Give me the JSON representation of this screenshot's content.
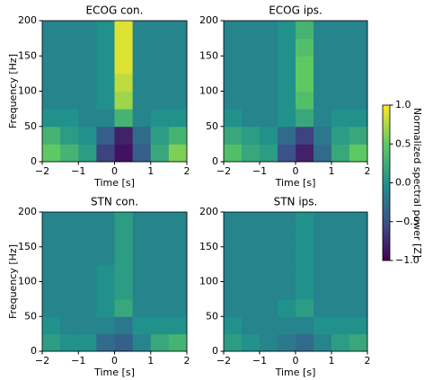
{
  "chart_data": [
    {
      "type": "heatmap",
      "title": "ECOG con.",
      "xlabel": "Time [s]",
      "ylabel": "Frequency [Hz]",
      "colormap": "viridis",
      "x": [
        -2,
        -1.5,
        -1,
        -0.5,
        0,
        0.5,
        1,
        1.5,
        2
      ],
      "y": [
        0,
        25,
        50,
        75,
        100,
        125,
        150,
        175,
        200
      ],
      "xlim": [
        -2,
        2
      ],
      "ylim": [
        0,
        200
      ],
      "xticks": [
        {
          "value": -2,
          "label": "−2"
        },
        {
          "value": -1,
          "label": "−1"
        },
        0,
        1,
        2
      ],
      "yticks": [
        0,
        50,
        100,
        150,
        200
      ],
      "values": [
        [
          0.5,
          0.3,
          0.1,
          -0.6,
          -0.9,
          -0.4,
          0.2,
          0.6
        ],
        [
          0.3,
          0.1,
          0,
          -0.4,
          -0.8,
          -0.3,
          0.1,
          0.3
        ],
        [
          0,
          0,
          -0.1,
          -0.1,
          0.3,
          -0.1,
          0,
          0
        ],
        [
          -0.1,
          -0.1,
          -0.1,
          0,
          0.7,
          -0.1,
          -0.1,
          -0.1
        ],
        [
          -0.1,
          -0.1,
          -0.1,
          0,
          0.8,
          -0.1,
          -0.1,
          -0.1
        ],
        [
          -0.1,
          -0.1,
          -0.1,
          0,
          0.9,
          -0.1,
          -0.1,
          -0.1
        ],
        [
          -0.1,
          -0.1,
          -0.1,
          0,
          0.9,
          -0.1,
          -0.1,
          -0.1
        ],
        [
          -0.1,
          -0.1,
          -0.1,
          0,
          0.9,
          -0.1,
          -0.1,
          -0.1
        ]
      ]
    },
    {
      "type": "heatmap",
      "title": "ECOG ips.",
      "xlabel": "Time [s]",
      "colormap": "viridis",
      "x": [
        -2,
        -1.5,
        -1,
        -0.5,
        0,
        0.5,
        1,
        1.5,
        2
      ],
      "y": [
        0,
        25,
        50,
        75,
        100,
        125,
        150,
        175,
        200
      ],
      "xlim": [
        -2,
        2
      ],
      "ylim": [
        0,
        200
      ],
      "xticks": [
        {
          "value": -2,
          "label": "−2"
        },
        {
          "value": -1,
          "label": "−1"
        },
        0,
        1,
        2
      ],
      "yticks": [
        0,
        50,
        100,
        150,
        200
      ],
      "values": [
        [
          0.4,
          0.2,
          0.1,
          -0.5,
          -0.8,
          -0.3,
          0.2,
          0.5
        ],
        [
          0.2,
          0.1,
          0,
          -0.3,
          -0.6,
          -0.2,
          0.1,
          0.2
        ],
        [
          0,
          -0.1,
          -0.1,
          0,
          0.2,
          -0.1,
          0,
          0
        ],
        [
          -0.1,
          -0.1,
          -0.1,
          0,
          0.4,
          -0.1,
          -0.1,
          -0.1
        ],
        [
          -0.1,
          -0.1,
          -0.1,
          0,
          0.5,
          -0.1,
          -0.1,
          -0.1
        ],
        [
          -0.1,
          -0.1,
          -0.1,
          0,
          0.5,
          -0.1,
          -0.1,
          -0.1
        ],
        [
          -0.1,
          -0.1,
          -0.1,
          0,
          0.4,
          -0.1,
          -0.1,
          -0.1
        ],
        [
          -0.1,
          -0.1,
          -0.1,
          0,
          0.3,
          -0.1,
          -0.1,
          -0.1
        ]
      ]
    },
    {
      "type": "heatmap",
      "title": "STN con.",
      "xlabel": "Time [s]",
      "ylabel": "Frequency [Hz]",
      "colormap": "viridis",
      "x": [
        -2,
        -1.5,
        -1,
        -0.5,
        0,
        0.5,
        1,
        1.5,
        2
      ],
      "y": [
        0,
        25,
        50,
        75,
        100,
        125,
        150,
        175,
        200
      ],
      "xlim": [
        -2,
        2
      ],
      "ylim": [
        0,
        200
      ],
      "xticks": [
        {
          "value": -2,
          "label": "−2"
        },
        {
          "value": -1,
          "label": "−1"
        },
        0,
        1,
        2
      ],
      "yticks": [
        0,
        50,
        100,
        150,
        200
      ],
      "values": [
        [
          0.1,
          0,
          0,
          -0.3,
          -0.4,
          -0.1,
          0.2,
          0.3
        ],
        [
          0,
          -0.1,
          -0.1,
          -0.1,
          -0.2,
          0,
          0,
          0
        ],
        [
          -0.1,
          -0.1,
          -0.1,
          0,
          0.2,
          -0.1,
          -0.1,
          -0.1
        ],
        [
          -0.1,
          -0.1,
          -0.1,
          0,
          0.1,
          -0.1,
          -0.1,
          -0.1
        ],
        [
          -0.1,
          -0.1,
          -0.1,
          0,
          0.1,
          -0.1,
          -0.1,
          -0.1
        ],
        [
          -0.1,
          -0.1,
          -0.1,
          -0.1,
          0.1,
          -0.1,
          -0.1,
          -0.1
        ],
        [
          -0.1,
          -0.1,
          -0.1,
          -0.1,
          0.1,
          -0.1,
          -0.1,
          -0.1
        ],
        [
          -0.1,
          -0.1,
          -0.1,
          -0.1,
          0.1,
          -0.1,
          -0.1,
          -0.1
        ]
      ]
    },
    {
      "type": "heatmap",
      "title": "STN ips.",
      "xlabel": "Time [s]",
      "colormap": "viridis",
      "x": [
        -2,
        -1.5,
        -1,
        -0.5,
        0,
        0.5,
        1,
        1.5,
        2
      ],
      "y": [
        0,
        25,
        50,
        75,
        100,
        125,
        150,
        175,
        200
      ],
      "xlim": [
        -2,
        2
      ],
      "ylim": [
        0,
        200
      ],
      "xticks": [
        {
          "value": -2,
          "label": "−2"
        },
        {
          "value": -1,
          "label": "−1"
        },
        0,
        1,
        2
      ],
      "yticks": [
        0,
        50,
        100,
        150,
        200
      ],
      "values": [
        [
          0.1,
          0,
          -0.1,
          -0.2,
          -0.3,
          -0.1,
          0.1,
          0.2
        ],
        [
          0,
          -0.1,
          -0.1,
          -0.1,
          -0.1,
          0,
          0,
          0
        ],
        [
          -0.1,
          -0.1,
          -0.1,
          0,
          0.1,
          -0.1,
          -0.1,
          -0.1
        ],
        [
          -0.1,
          -0.1,
          -0.1,
          -0.1,
          0,
          -0.1,
          -0.1,
          -0.1
        ],
        [
          -0.1,
          -0.1,
          -0.1,
          -0.1,
          0,
          -0.1,
          -0.1,
          -0.1
        ],
        [
          -0.1,
          -0.1,
          -0.1,
          -0.1,
          0,
          -0.1,
          -0.1,
          -0.1
        ],
        [
          -0.1,
          -0.1,
          -0.1,
          -0.1,
          0,
          -0.1,
          -0.1,
          -0.1
        ],
        [
          -0.1,
          -0.1,
          -0.1,
          -0.1,
          0,
          -0.1,
          -0.1,
          -0.1
        ]
      ]
    },
    {
      "type": "colorbar",
      "label": "Normalized spectral power [Z]",
      "colormap": "viridis",
      "zlim": [
        -1,
        1
      ],
      "zticks": [
        {
          "value": -1,
          "label": "−1.0"
        },
        {
          "value": -0.5,
          "label": "−0.5"
        },
        {
          "value": 0,
          "label": "0.0"
        },
        {
          "value": 0.5,
          "label": "0.5"
        },
        {
          "value": 1,
          "label": "1.0"
        }
      ]
    }
  ]
}
